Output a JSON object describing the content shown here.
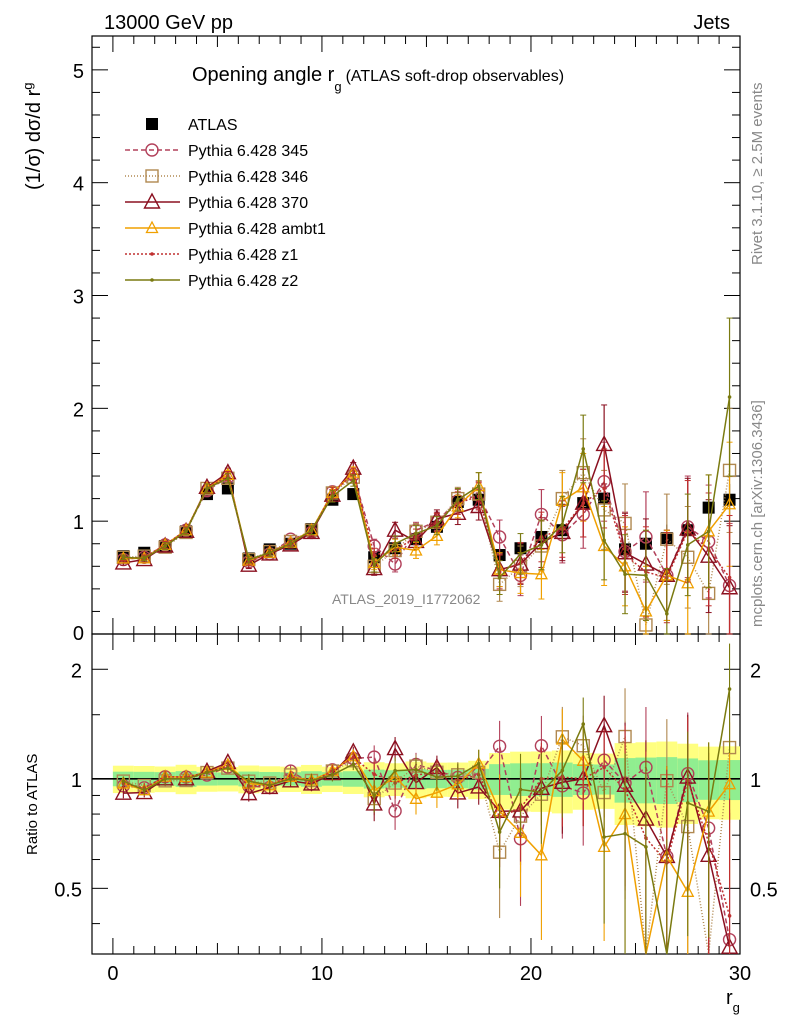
{
  "header": {
    "left": "13000 GeV pp",
    "right": "Jets"
  },
  "side_texts": {
    "rivet": "Rivet 3.1.10, ≥ 2.5M events",
    "mcplots": "mcplots.cern.ch [arXiv:1306.3436]"
  },
  "watermark": "ATLAS_2019_I1772062",
  "chart_data": [
    {
      "type": "line",
      "title": "Opening angle r",
      "title_sub": "g",
      "title_note": "(ATLAS soft-drop observables)",
      "ylabel": "(1/σ) dσ/d r",
      "ylabel_sub": "g",
      "xlabel": "r",
      "xlabel_sub": "g",
      "xlim": [
        -1,
        30
      ],
      "ylim": [
        0,
        5.3
      ],
      "yticks": [
        "1",
        "2",
        "3",
        "4",
        "5"
      ],
      "y_zero_label": "0",
      "x": [
        0.5,
        1.5,
        2.5,
        3.5,
        4.5,
        5.5,
        6.5,
        7.5,
        8.5,
        9.5,
        10.5,
        11.5,
        12.5,
        13.5,
        14.5,
        15.5,
        16.5,
        17.5,
        18.5,
        19.5,
        20.5,
        21.5,
        22.5,
        23.5,
        24.5,
        25.5,
        26.5,
        27.5,
        28.5,
        29.5
      ],
      "series": [
        {
          "name": "ATLAS",
          "color": "#000000",
          "marker": "filled-square",
          "dash": "none",
          "values": [
            0.69,
            0.72,
            0.78,
            0.91,
            1.24,
            1.29,
            0.67,
            0.75,
            0.8,
            0.93,
            1.19,
            1.24,
            0.68,
            0.76,
            0.84,
            0.95,
            1.17,
            1.19,
            0.7,
            0.76,
            0.86,
            0.92,
            1.16,
            1.2,
            0.75,
            0.8,
            0.85,
            0.92,
            1.12,
            1.19
          ],
          "err": [
            0.02,
            0.02,
            0.02,
            0.03,
            0.03,
            0.03,
            0.02,
            0.02,
            0.02,
            0.03,
            0.03,
            0.04,
            0.03,
            0.03,
            0.04,
            0.04,
            0.05,
            0.06,
            0.06,
            0.07,
            0.08,
            0.09,
            0.1,
            0.1,
            0.1,
            0.11,
            0.12,
            0.12,
            0.13,
            0.14
          ]
        },
        {
          "name": "Pythia 6.428 345",
          "color": "#b2405a",
          "marker": "open-circle",
          "dash": "5,3",
          "values": [
            0.66,
            0.68,
            0.79,
            0.92,
            1.27,
            1.39,
            0.64,
            0.71,
            0.84,
            0.9,
            1.26,
            1.41,
            0.78,
            0.62,
            0.92,
            1.0,
            1.18,
            1.23,
            0.86,
            0.52,
            1.06,
            0.88,
            1.06,
            1.35,
            0.73,
            0.86,
            0.52,
            0.95,
            0.82,
            0.43
          ],
          "err": [
            0.02,
            0.02,
            0.03,
            0.03,
            0.04,
            0.04,
            0.03,
            0.03,
            0.03,
            0.04,
            0.05,
            0.05,
            0.06,
            0.07,
            0.07,
            0.08,
            0.1,
            0.12,
            0.15,
            0.18,
            0.22,
            0.25,
            0.3,
            0.35,
            0.35,
            0.4,
            0.4,
            0.45,
            0.5,
            0.55
          ]
        },
        {
          "name": "Pythia 6.428 346",
          "color": "#b08850",
          "marker": "open-square",
          "dash": "1,2",
          "values": [
            0.68,
            0.69,
            0.77,
            0.9,
            1.29,
            1.38,
            0.66,
            0.73,
            0.82,
            0.92,
            1.25,
            1.39,
            0.6,
            0.74,
            0.91,
            0.99,
            1.2,
            1.24,
            0.44,
            0.6,
            0.78,
            1.2,
            1.43,
            1.1,
            0.98,
            0.08,
            0.84,
            0.68,
            0.36,
            1.45
          ],
          "err": [
            0.02,
            0.02,
            0.03,
            0.03,
            0.04,
            0.04,
            0.03,
            0.03,
            0.03,
            0.04,
            0.05,
            0.05,
            0.06,
            0.07,
            0.07,
            0.08,
            0.1,
            0.12,
            0.15,
            0.18,
            0.22,
            0.25,
            0.3,
            0.35,
            0.35,
            0.4,
            0.4,
            0.45,
            0.5,
            0.55
          ]
        },
        {
          "name": "Pythia 6.428 370",
          "color": "#8b1020",
          "marker": "open-triangle",
          "dash": "none",
          "values": [
            0.63,
            0.66,
            0.78,
            0.91,
            1.3,
            1.43,
            0.61,
            0.71,
            0.79,
            0.9,
            1.23,
            1.47,
            0.58,
            0.92,
            0.82,
            1.02,
            1.07,
            1.13,
            0.57,
            0.62,
            0.81,
            0.9,
            1.16,
            1.68,
            0.72,
            0.62,
            0.52,
            0.93,
            0.69,
            0.41
          ],
          "err": [
            0.02,
            0.02,
            0.03,
            0.03,
            0.04,
            0.04,
            0.03,
            0.03,
            0.03,
            0.04,
            0.05,
            0.05,
            0.06,
            0.07,
            0.07,
            0.08,
            0.1,
            0.12,
            0.15,
            0.18,
            0.22,
            0.25,
            0.3,
            0.35,
            0.35,
            0.4,
            0.4,
            0.45,
            0.5,
            0.55
          ]
        },
        {
          "name": "Pythia 6.428 ambt1",
          "color": "#f0a000",
          "marker": "open-triangle-small",
          "dash": "none",
          "values": [
            0.67,
            0.67,
            0.79,
            0.92,
            1.29,
            1.41,
            0.65,
            0.72,
            0.81,
            0.92,
            1.25,
            1.43,
            0.63,
            0.77,
            0.74,
            0.87,
            1.13,
            1.31,
            0.57,
            0.54,
            0.53,
            1.18,
            1.3,
            0.78,
            0.6,
            0.2,
            0.52,
            0.45,
            0.91,
            1.15
          ],
          "err": [
            0.02,
            0.02,
            0.03,
            0.03,
            0.04,
            0.04,
            0.03,
            0.03,
            0.03,
            0.04,
            0.05,
            0.05,
            0.06,
            0.07,
            0.07,
            0.08,
            0.1,
            0.12,
            0.15,
            0.18,
            0.22,
            0.25,
            0.3,
            0.35,
            0.35,
            0.4,
            0.4,
            0.45,
            0.5,
            0.55
          ]
        },
        {
          "name": "Pythia 6.428 z1",
          "color": "#c03030",
          "marker": "dot",
          "dash": "2,2",
          "values": [
            0.67,
            0.68,
            0.79,
            0.92,
            1.29,
            1.4,
            0.64,
            0.72,
            0.81,
            0.91,
            1.25,
            1.42,
            0.7,
            0.74,
            0.86,
            0.99,
            1.16,
            1.22,
            0.55,
            0.63,
            0.86,
            0.93,
            1.16,
            1.29,
            0.7,
            0.55,
            0.5,
            0.91,
            0.75,
            0.5
          ],
          "err": [
            0.02,
            0.02,
            0.03,
            0.03,
            0.04,
            0.04,
            0.03,
            0.03,
            0.03,
            0.04,
            0.05,
            0.05,
            0.06,
            0.07,
            0.07,
            0.08,
            0.1,
            0.12,
            0.15,
            0.18,
            0.22,
            0.25,
            0.3,
            0.35,
            0.35,
            0.4,
            0.4,
            0.45,
            0.5,
            0.55
          ]
        },
        {
          "name": "Pythia 6.428 z2",
          "color": "#7a7a10",
          "marker": "dot",
          "dash": "none",
          "values": [
            0.68,
            0.67,
            0.78,
            0.91,
            1.29,
            1.38,
            0.66,
            0.72,
            0.8,
            0.92,
            1.22,
            1.36,
            0.61,
            0.8,
            0.89,
            0.96,
            1.19,
            1.31,
            0.5,
            0.71,
            0.79,
            0.97,
            1.64,
            0.83,
            0.53,
            0.52,
            0.18,
            0.79,
            0.91,
            2.1
          ],
          "err": [
            0.02,
            0.02,
            0.03,
            0.03,
            0.04,
            0.04,
            0.03,
            0.03,
            0.03,
            0.04,
            0.05,
            0.05,
            0.06,
            0.07,
            0.07,
            0.08,
            0.1,
            0.12,
            0.15,
            0.18,
            0.22,
            0.25,
            0.3,
            0.35,
            0.35,
            0.4,
            0.4,
            0.45,
            0.5,
            0.7
          ]
        }
      ]
    },
    {
      "type": "line",
      "ylabel": "Ratio to ATLAS",
      "xticks": [
        "0",
        "10",
        "20",
        "30"
      ],
      "yticks": [
        "0.5",
        "1",
        "2"
      ],
      "ylim": [
        0.33,
        2.5
      ],
      "band_colors": [
        "#ffff80",
        "#90ee90"
      ]
    }
  ]
}
